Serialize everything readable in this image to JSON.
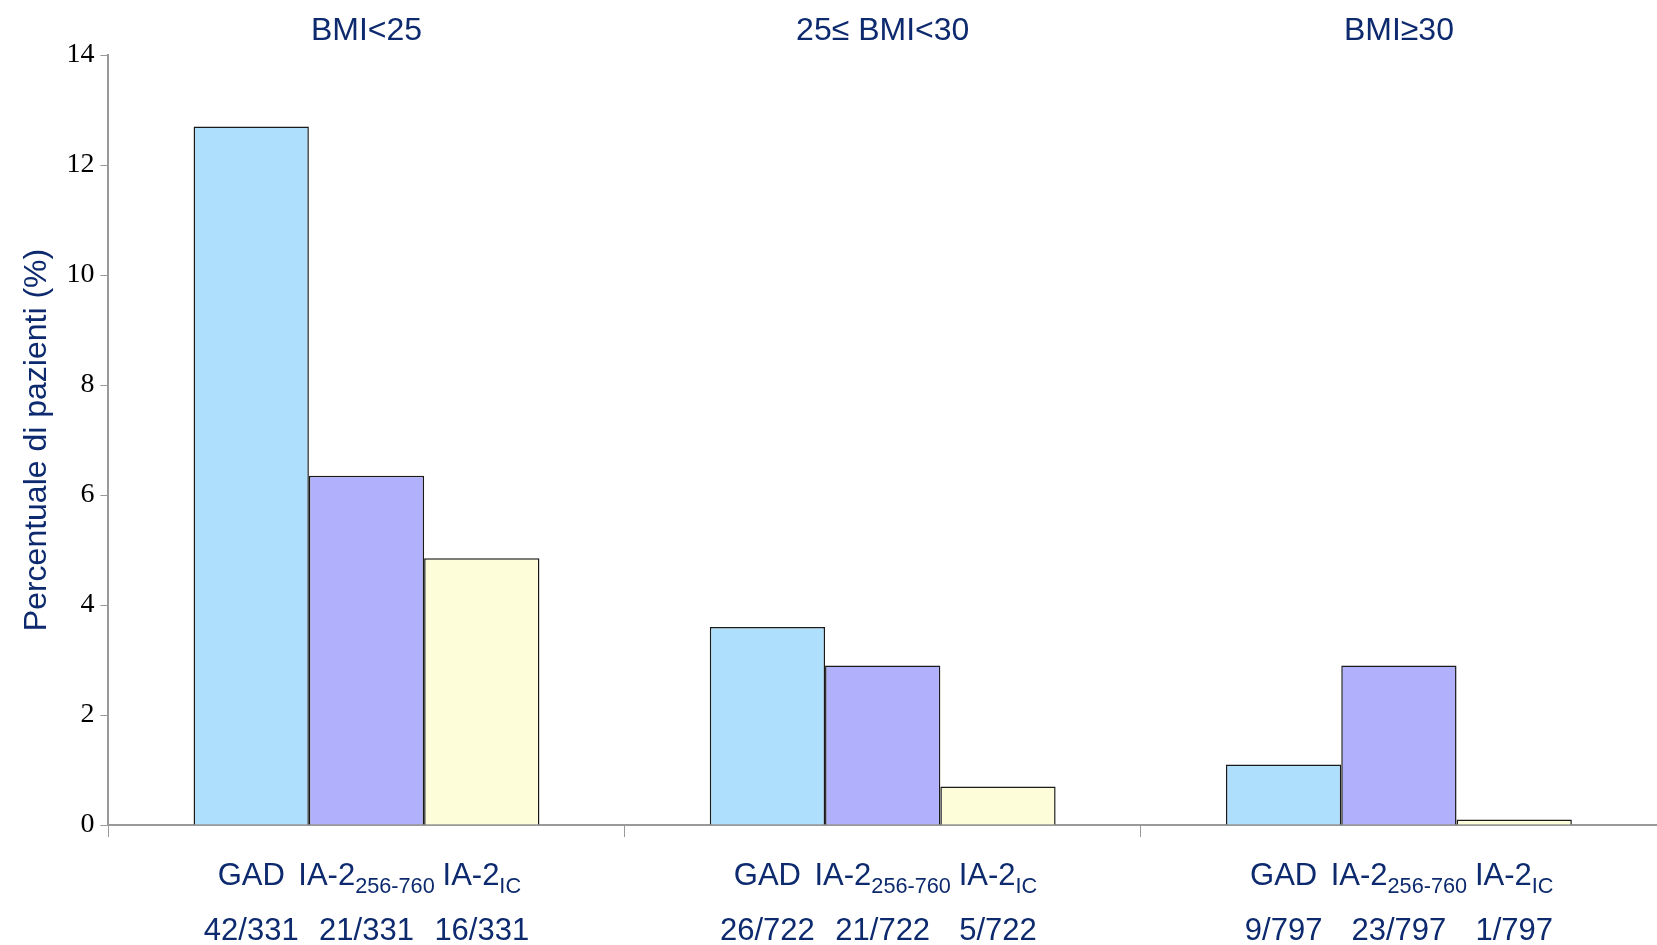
{
  "chart_data": {
    "type": "bar",
    "categories": [
      "BMI<25",
      "25≤ BMI<30",
      "BMI≥30"
    ],
    "ylabel": "Percentuale di pazienti (%)",
    "ylim": [
      0,
      14
    ],
    "yticks": [
      0,
      2,
      4,
      6,
      8,
      10,
      12,
      14
    ],
    "grid": false,
    "legend": false,
    "series": [
      {
        "name": "GAD",
        "color": "#aedffc",
        "values": [
          12.7,
          3.6,
          1.1
        ],
        "value_labels": [
          "42/331",
          "26/722",
          "9/797"
        ]
      },
      {
        "name": "IA-2$_{256-760}$",
        "color": "#b0b0fc",
        "values": [
          6.35,
          2.9,
          2.9
        ],
        "value_labels": [
          "21/331",
          "21/722",
          "23/797"
        ]
      },
      {
        "name": "IA-2$_{IC}$",
        "color": "#fdfdd9",
        "values": [
          4.85,
          0.7,
          0.1
        ],
        "value_labels": [
          "16/331",
          "5/722",
          "1/797"
        ]
      }
    ]
  }
}
